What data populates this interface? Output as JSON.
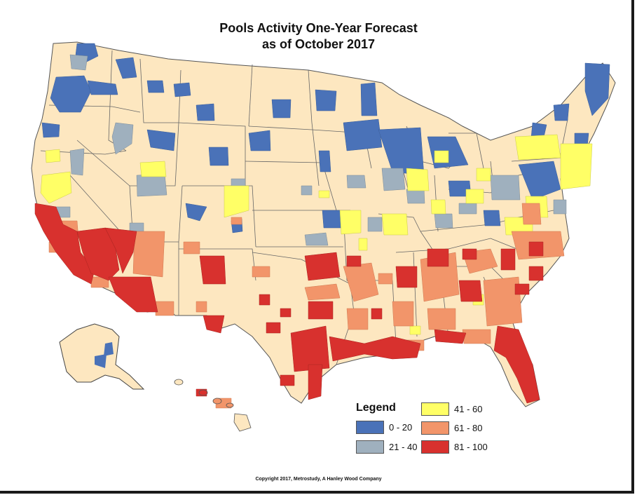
{
  "title_line1": "Pools Activity One-Year Forecast",
  "title_line2": "as of October 2017",
  "legend": {
    "title": "Legend",
    "items": [
      {
        "label": "0 - 20",
        "color": "#4a72b8"
      },
      {
        "label": "21 - 40",
        "color": "#9fb0be"
      },
      {
        "label": "41 - 60",
        "color": "#ffff66"
      },
      {
        "label": "61 - 80",
        "color": "#f2956a"
      },
      {
        "label": "81 - 100",
        "color": "#d8312e"
      }
    ]
  },
  "colors": {
    "background_state": "#fde7c0",
    "state_border": "#555555"
  },
  "copyright": "Copyright 2017, Metrostudy, A Hanley Wood Company"
}
